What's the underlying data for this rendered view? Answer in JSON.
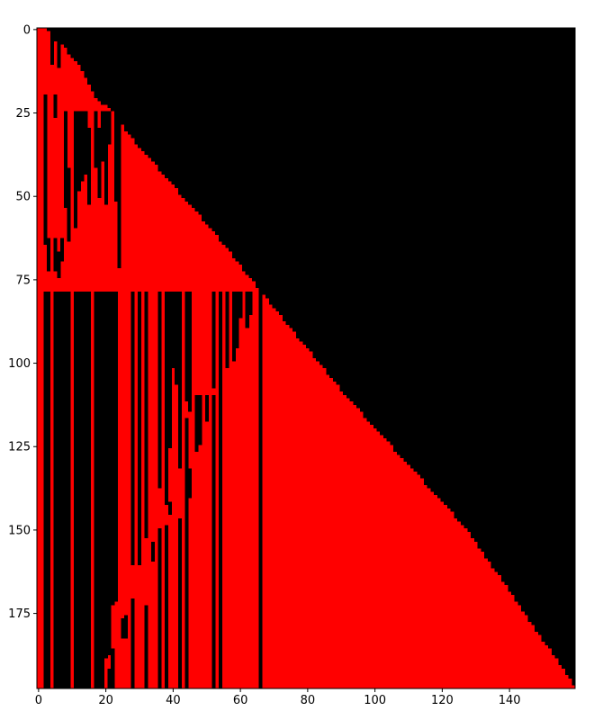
{
  "chart_data": {
    "type": "heatmap",
    "title": "",
    "xlabel": "",
    "ylabel": "",
    "n_cols": 160,
    "n_rows": 198,
    "xlim": [
      -0.5,
      159.5
    ],
    "ylim": [
      197.5,
      -0.5
    ],
    "y_inverted": true,
    "grid": false,
    "legend": "none",
    "colors": {
      "filled": "#ff0000",
      "empty": "#000000"
    },
    "x_ticks": [
      0,
      20,
      40,
      60,
      80,
      100,
      120,
      140
    ],
    "y_ticks": [
      0,
      25,
      50,
      75,
      100,
      125,
      150,
      175
    ],
    "x_tick_labels": [
      "0",
      "20",
      "40",
      "60",
      "80",
      "100",
      "120",
      "140"
    ],
    "y_tick_labels": [
      "0",
      "25",
      "50",
      "75",
      "100",
      "125",
      "150",
      "175"
    ],
    "staircase": [
      [
        0,
        3
      ],
      [
        3,
        6
      ],
      [
        10,
        12
      ],
      [
        20,
        17
      ],
      [
        26,
        24
      ],
      [
        30,
        26
      ],
      [
        60,
        52
      ],
      [
        79,
        67
      ],
      [
        110,
        92
      ],
      [
        150,
        128
      ],
      [
        197,
        160
      ]
    ],
    "dark_segments": [
      [
        2,
        20,
        64
      ],
      [
        2,
        79,
        197
      ],
      [
        3,
        63,
        72
      ],
      [
        3,
        79,
        197
      ],
      [
        4,
        0,
        10
      ],
      [
        5,
        0,
        3
      ],
      [
        5,
        20,
        26
      ],
      [
        5,
        63,
        72
      ],
      [
        5,
        79,
        197
      ],
      [
        6,
        2,
        11
      ],
      [
        6,
        67,
        74
      ],
      [
        6,
        79,
        197
      ],
      [
        7,
        63,
        69
      ],
      [
        7,
        79,
        197
      ],
      [
        8,
        25,
        53
      ],
      [
        8,
        79,
        197
      ],
      [
        9,
        42,
        63
      ],
      [
        9,
        79,
        197
      ],
      [
        11,
        25,
        59
      ],
      [
        11,
        79,
        197
      ],
      [
        12,
        25,
        48
      ],
      [
        12,
        79,
        197
      ],
      [
        13,
        25,
        45
      ],
      [
        13,
        79,
        197
      ],
      [
        14,
        25,
        43
      ],
      [
        14,
        79,
        197
      ],
      [
        15,
        30,
        52
      ],
      [
        15,
        79,
        197
      ],
      [
        17,
        25,
        41
      ],
      [
        17,
        79,
        197
      ],
      [
        18,
        30,
        50
      ],
      [
        18,
        79,
        197
      ],
      [
        19,
        25,
        39
      ],
      [
        19,
        79,
        197
      ],
      [
        20,
        25,
        52
      ],
      [
        20,
        79,
        188
      ],
      [
        21,
        25,
        34
      ],
      [
        21,
        79,
        187
      ],
      [
        21,
        192,
        197
      ],
      [
        22,
        79,
        172
      ],
      [
        22,
        186,
        197
      ],
      [
        23,
        25,
        51
      ],
      [
        23,
        79,
        171
      ],
      [
        24,
        25,
        71
      ],
      [
        25,
        177,
        182
      ],
      [
        26,
        176,
        182
      ],
      [
        28,
        79,
        160
      ],
      [
        28,
        171,
        197
      ],
      [
        30,
        79,
        160
      ],
      [
        32,
        79,
        152
      ],
      [
        32,
        173,
        197
      ],
      [
        34,
        154,
        159
      ],
      [
        36,
        79,
        137
      ],
      [
        36,
        150,
        197
      ],
      [
        38,
        79,
        142
      ],
      [
        38,
        149,
        197
      ],
      [
        39,
        79,
        125
      ],
      [
        39,
        142,
        145
      ],
      [
        40,
        79,
        101
      ],
      [
        41,
        79,
        106
      ],
      [
        42,
        79,
        131
      ],
      [
        42,
        147,
        197
      ],
      [
        44,
        79,
        111
      ],
      [
        44,
        117,
        197
      ],
      [
        45,
        79,
        114
      ],
      [
        45,
        132,
        140
      ],
      [
        47,
        110,
        126
      ],
      [
        48,
        110,
        124
      ],
      [
        50,
        110,
        117
      ],
      [
        52,
        79,
        107
      ],
      [
        52,
        110,
        197
      ],
      [
        54,
        79,
        197
      ],
      [
        56,
        79,
        101
      ],
      [
        58,
        79,
        99
      ],
      [
        59,
        79,
        95
      ],
      [
        60,
        79,
        86
      ],
      [
        62,
        79,
        89
      ],
      [
        63,
        79,
        85
      ],
      [
        66,
        79,
        197
      ]
    ]
  }
}
